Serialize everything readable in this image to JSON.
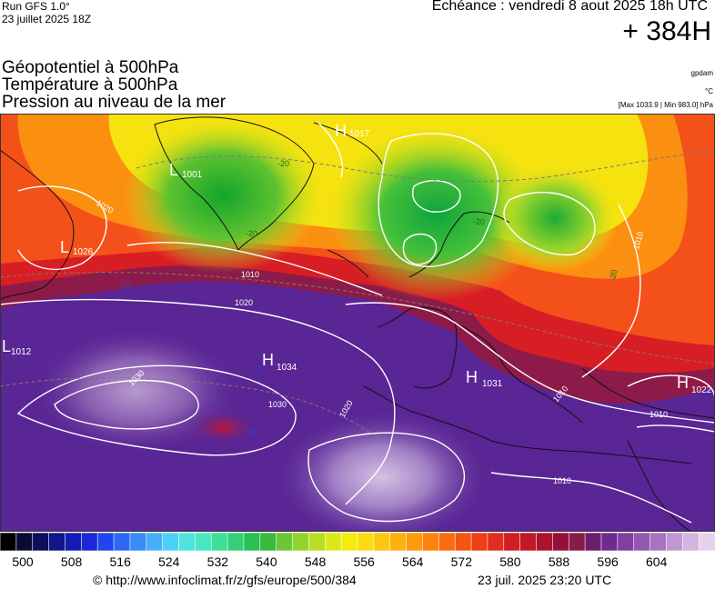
{
  "header": {
    "run": "Run GFS 1.0°",
    "run_date": "23 juillet 2025 18Z",
    "valid_time": "Echéance : vendredi 8 aout 2025 18h UTC",
    "lead_time": "+ 384H"
  },
  "fields": [
    "Géopotentiel à 500hPa",
    "Température à 500hPa",
    "Pression au niveau de la mer"
  ],
  "units": {
    "geopotential": "gpdam",
    "temperature": "°C"
  },
  "max_min": "[Max 1033.9 | Min 983.0] hPa",
  "pressure_labels": [
    {
      "type": "H",
      "value": "1017"
    },
    {
      "type": "L",
      "value": "1001"
    },
    {
      "type": "L",
      "value": "1026"
    },
    {
      "type": "L",
      "value": "1012"
    },
    {
      "type": "H",
      "value": "1034"
    },
    {
      "type": "H",
      "value": "1031"
    },
    {
      "type": "H",
      "value": "1022"
    }
  ],
  "isobar_labels": [
    "1020",
    "1030",
    "1030",
    "1020",
    "1010",
    "1010",
    "1010",
    "1010",
    "1010",
    "1020"
  ],
  "temperature_labels": [
    "-10",
    "-10",
    "-10",
    "-20",
    "-20",
    "-20",
    "-20"
  ],
  "legend": {
    "ticks": [
      "500",
      "508",
      "516",
      "524",
      "532",
      "540",
      "548",
      "556",
      "564",
      "572",
      "580",
      "588",
      "596",
      "604"
    ],
    "colors": [
      "#000000",
      "#0a0a33",
      "#0d0f5e",
      "#10158a",
      "#141bb3",
      "#1a28d6",
      "#1f45ee",
      "#2c68f5",
      "#3a8af8",
      "#48aef9",
      "#4ed0f5",
      "#4fe3e0",
      "#47e7bf",
      "#3ede9b",
      "#33d077",
      "#29c055",
      "#3ab93f",
      "#6cc737",
      "#93d22e",
      "#b8dd23",
      "#dde818",
      "#f4eb10",
      "#fadc10",
      "#fcc710",
      "#fdb10f",
      "#fd9a0e",
      "#fb830e",
      "#f86b10",
      "#f45512",
      "#ee3f17",
      "#e22c1d",
      "#d21e22",
      "#c11727",
      "#ab132e",
      "#951038",
      "#881b4a",
      "#6b1d70",
      "#6f2a8f",
      "#8040a0",
      "#9458b0",
      "#a873c0",
      "#c197d3",
      "#d4b4e0",
      "#e6d2ed"
    ]
  },
  "footer": {
    "source": "© http://www.infoclimat.fr/z/gfs/europe/500/384",
    "generated": "23 juil. 2025 23:20 UTC"
  },
  "colors": {
    "low": "#18b41c",
    "mid": "#f5e80e",
    "warm": "#f0391c",
    "high": "#4a1a8c"
  }
}
